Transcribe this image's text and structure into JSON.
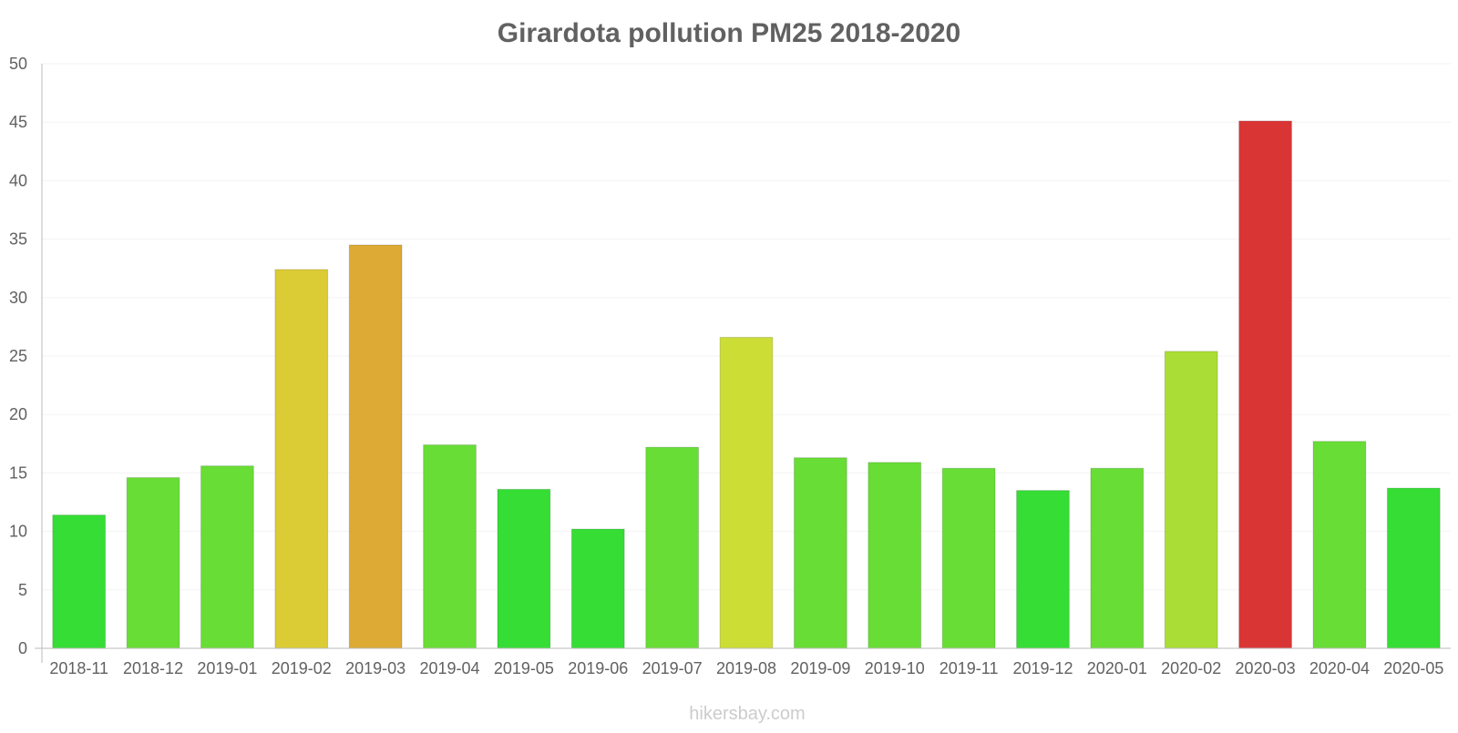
{
  "chart_data": {
    "type": "bar",
    "title": "Girardota pollution PM25 2018-2020",
    "xlabel": "",
    "ylabel": "",
    "ylim": [
      0,
      50
    ],
    "yticks": [
      0,
      5,
      10,
      15,
      20,
      25,
      30,
      35,
      40,
      45,
      50
    ],
    "categories": [
      "2018-11",
      "2018-12",
      "2019-01",
      "2019-02",
      "2019-03",
      "2019-04",
      "2019-05",
      "2019-06",
      "2019-07",
      "2019-08",
      "2019-09",
      "2019-10",
      "2019-11",
      "2019-12",
      "2020-01",
      "2020-02",
      "2020-03",
      "2020-04",
      "2020-05"
    ],
    "values": [
      11.4,
      14.6,
      15.6,
      32.4,
      34.5,
      17.4,
      13.6,
      10.2,
      17.2,
      26.6,
      16.3,
      15.9,
      15.4,
      13.5,
      15.4,
      25.4,
      45.1,
      17.7,
      13.7
    ],
    "bar_colors": [
      "#35dd35",
      "#68dd35",
      "#68dd35",
      "#dbcb35",
      "#dcaa35",
      "#68dd35",
      "#35dd35",
      "#35dd35",
      "#68dd35",
      "#ccdd35",
      "#68dd35",
      "#68dd35",
      "#68dd35",
      "#35dd35",
      "#68dd35",
      "#aadd35",
      "#da3535",
      "#68dd35",
      "#35dd35"
    ],
    "grid": true,
    "legend": "none"
  },
  "footer": {
    "watermark": "hikersbay.com"
  }
}
